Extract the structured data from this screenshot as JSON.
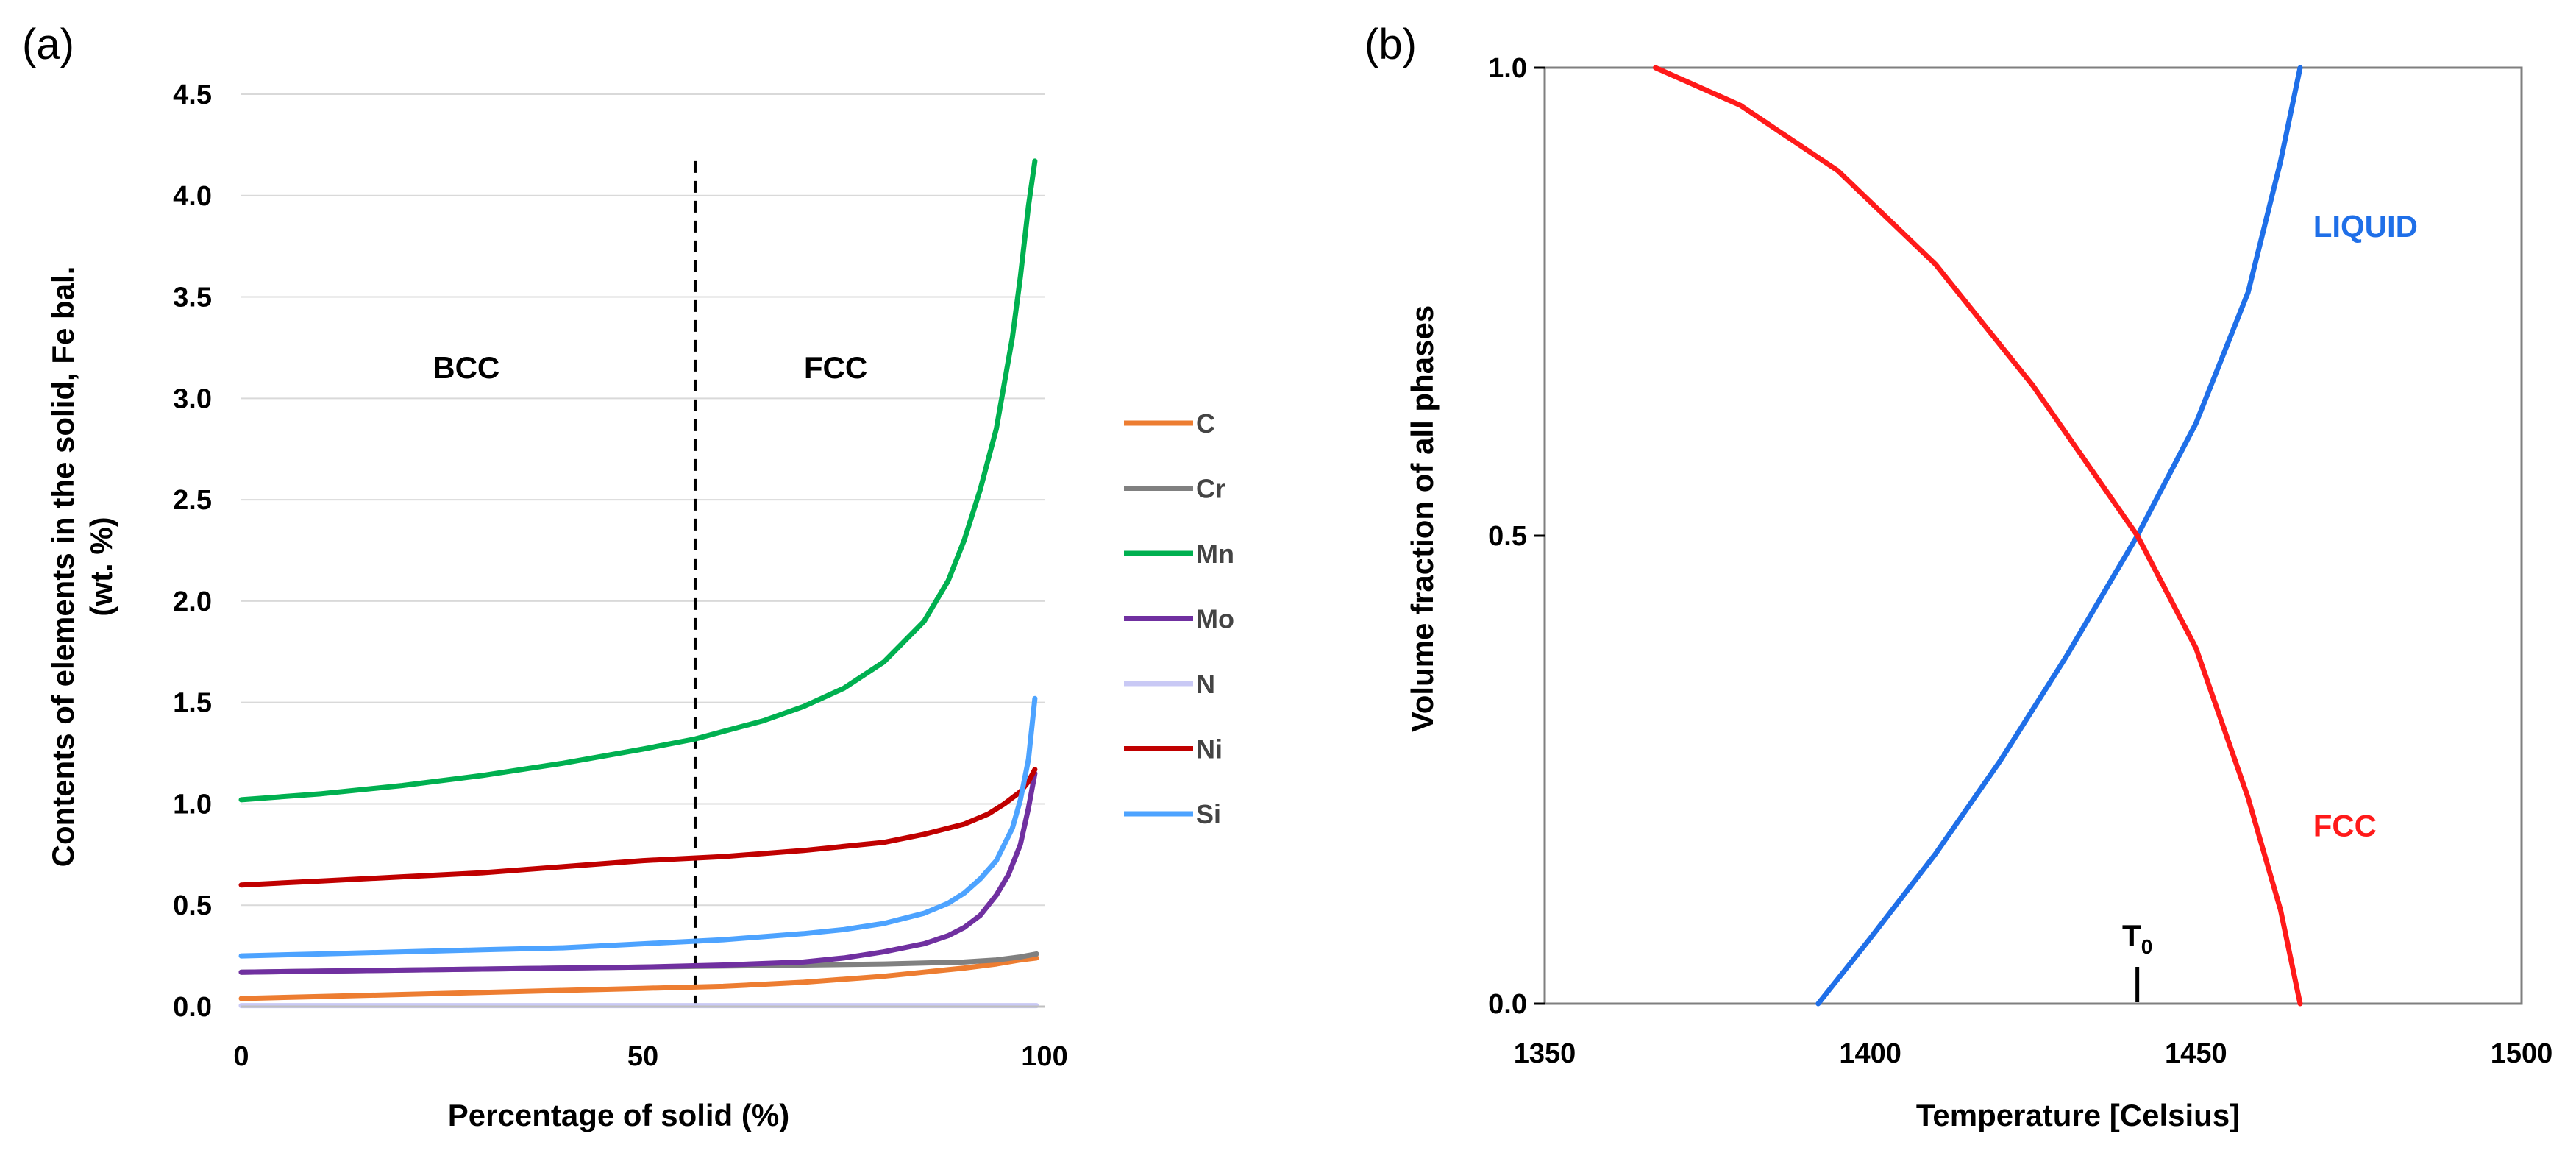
{
  "chart_data": [
    {
      "panel_label": "(a)",
      "type": "line",
      "xlabel": "Percentage of solid (%)",
      "ylabel": "Contents of elements in the solid, Fe bal.",
      "ylabel2": "(wt. %)",
      "xlim": [
        0,
        100
      ],
      "ylim": [
        0,
        4.5
      ],
      "xticks": [
        "0",
        "50",
        "100"
      ],
      "xtick_values": [
        0,
        50,
        100
      ],
      "yticks": [
        "0.0",
        "0.5",
        "1.0",
        "1.5",
        "2.0",
        "2.5",
        "3.0",
        "3.5",
        "4.0",
        "4.5"
      ],
      "ytick_values": [
        0,
        0.5,
        1.0,
        1.5,
        2.0,
        2.5,
        3.0,
        3.5,
        4.0,
        4.5
      ],
      "grid": "horizontal",
      "legend": "right",
      "divider_x": 56.5,
      "regions": [
        {
          "label": "BCC",
          "x": 28,
          "y": 3.15
        },
        {
          "label": "FCC",
          "x": 74,
          "y": 3.15
        }
      ],
      "series": [
        {
          "name": "C",
          "color": "#ED7D31",
          "x": [
            0,
            10,
            20,
            30,
            40,
            50,
            60,
            70,
            80,
            85,
            90,
            94,
            97,
            99
          ],
          "y": [
            0.04,
            0.05,
            0.06,
            0.07,
            0.08,
            0.09,
            0.1,
            0.12,
            0.15,
            0.17,
            0.19,
            0.21,
            0.23,
            0.24
          ]
        },
        {
          "name": "Cr",
          "color": "#808080",
          "x": [
            0,
            10,
            20,
            30,
            40,
            50,
            60,
            70,
            80,
            85,
            90,
            94,
            97,
            99
          ],
          "y": [
            0.17,
            0.175,
            0.18,
            0.185,
            0.19,
            0.195,
            0.2,
            0.205,
            0.21,
            0.215,
            0.22,
            0.23,
            0.245,
            0.26
          ]
        },
        {
          "name": "Mn",
          "color": "#00B050",
          "x": [
            0,
            10,
            20,
            30,
            40,
            50,
            56.5,
            65,
            70,
            75,
            80,
            85,
            88,
            90,
            92,
            94,
            96,
            97,
            98,
            98.8
          ],
          "y": [
            1.02,
            1.05,
            1.09,
            1.14,
            1.2,
            1.27,
            1.32,
            1.41,
            1.48,
            1.57,
            1.7,
            1.9,
            2.1,
            2.3,
            2.55,
            2.85,
            3.3,
            3.6,
            3.95,
            4.17
          ]
        },
        {
          "name": "Mo",
          "color": "#7030A0",
          "x": [
            0,
            10,
            20,
            30,
            40,
            50,
            60,
            70,
            75,
            80,
            85,
            88,
            90,
            92,
            94,
            95.5,
            97,
            98,
            98.8
          ],
          "y": [
            0.17,
            0.175,
            0.18,
            0.185,
            0.19,
            0.195,
            0.205,
            0.22,
            0.24,
            0.27,
            0.31,
            0.35,
            0.39,
            0.45,
            0.55,
            0.65,
            0.8,
            0.98,
            1.15
          ]
        },
        {
          "name": "N",
          "color": "#C9C9F5",
          "x": [
            0,
            50,
            99
          ],
          "y": [
            0.005,
            0.005,
            0.005
          ]
        },
        {
          "name": "Ni",
          "color": "#C00000",
          "x": [
            0,
            10,
            20,
            30,
            40,
            50,
            60,
            70,
            80,
            85,
            90,
            93,
            95,
            97,
            98,
            98.8
          ],
          "y": [
            0.6,
            0.62,
            0.64,
            0.66,
            0.69,
            0.72,
            0.74,
            0.77,
            0.81,
            0.85,
            0.9,
            0.95,
            1.0,
            1.06,
            1.11,
            1.17
          ]
        },
        {
          "name": "Si",
          "color": "#4DA3FF",
          "x": [
            0,
            10,
            20,
            30,
            40,
            50,
            60,
            70,
            75,
            80,
            85,
            88,
            90,
            92,
            94,
            96,
            97,
            98,
            98.8
          ],
          "y": [
            0.25,
            0.26,
            0.27,
            0.28,
            0.29,
            0.31,
            0.33,
            0.36,
            0.38,
            0.41,
            0.46,
            0.51,
            0.56,
            0.63,
            0.72,
            0.88,
            1.02,
            1.22,
            1.52
          ]
        }
      ]
    },
    {
      "panel_label": "(b)",
      "type": "line",
      "xlabel": "Temperature [Celsius]",
      "ylabel": "Volume fraction of all phases",
      "xlim": [
        1350,
        1500
      ],
      "ylim": [
        0,
        1
      ],
      "xticks": [
        "1350",
        "1400",
        "1450",
        "1500"
      ],
      "xtick_values": [
        1350,
        1400,
        1450,
        1500
      ],
      "yticks": [
        "0.0",
        "0.5",
        "1.0"
      ],
      "ytick_values": [
        0,
        0.5,
        1.0
      ],
      "grid": false,
      "legend": "none",
      "annotation": {
        "base": "T",
        "subscript": "0",
        "x": 1441
      },
      "series": [
        {
          "name": "LIQUID",
          "color": "#1F6FE8",
          "label_pos": [
            1468,
            0.83
          ],
          "x": [
            1392,
            1400,
            1410,
            1420,
            1430,
            1441,
            1450,
            1458,
            1463,
            1466
          ],
          "y": [
            0.0,
            0.07,
            0.16,
            0.26,
            0.37,
            0.5,
            0.62,
            0.76,
            0.9,
            1.0
          ]
        },
        {
          "name": "FCC",
          "color": "#FF1A1A",
          "label_pos": [
            1468,
            0.19
          ],
          "x": [
            1367,
            1380,
            1395,
            1410,
            1425,
            1441,
            1450,
            1458,
            1463,
            1466
          ],
          "y": [
            1.0,
            0.96,
            0.89,
            0.79,
            0.66,
            0.5,
            0.38,
            0.22,
            0.1,
            0.0
          ]
        }
      ]
    }
  ]
}
